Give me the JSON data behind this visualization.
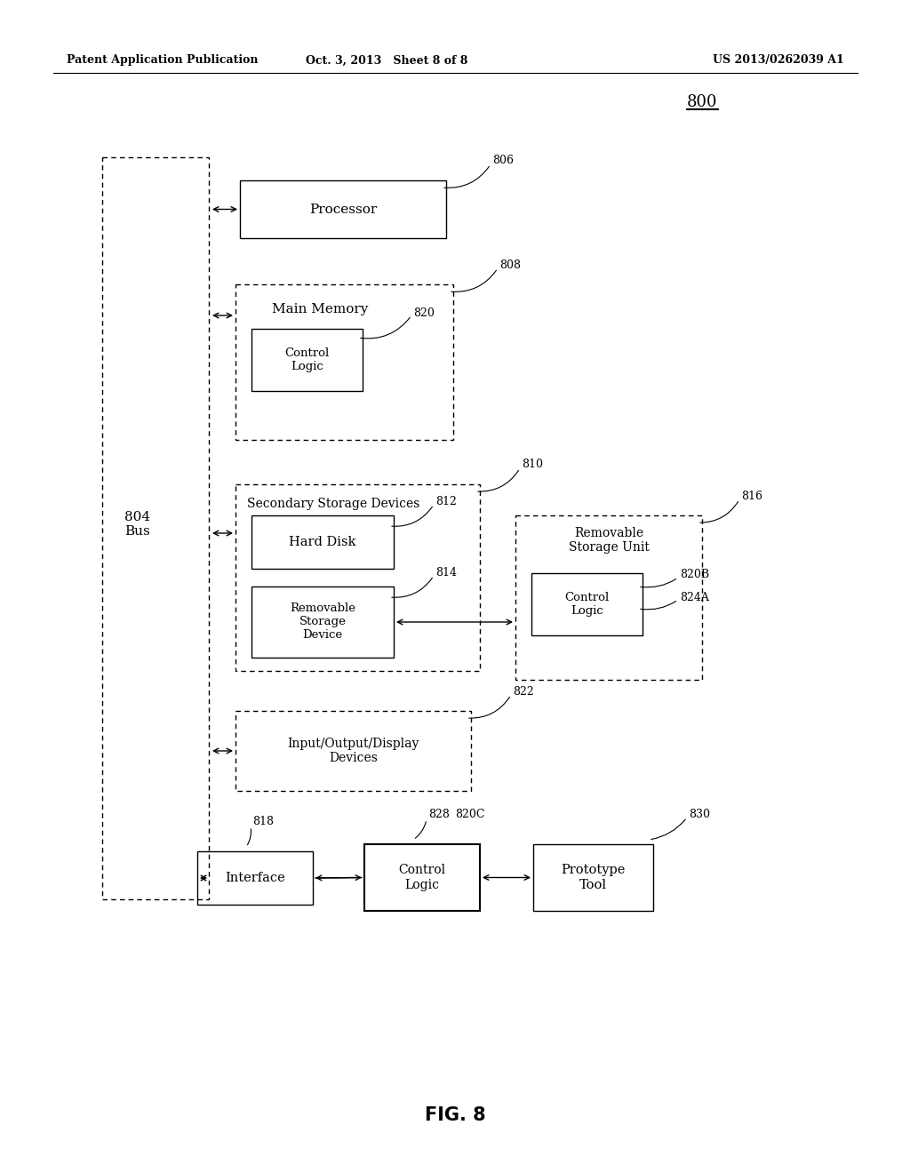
{
  "bg_color": "#ffffff",
  "header_left": "Patent Application Publication",
  "header_mid": "Oct. 3, 2013   Sheet 8 of 8",
  "header_right": "US 2013/0262039 A1",
  "figure_label": "FIG. 8"
}
